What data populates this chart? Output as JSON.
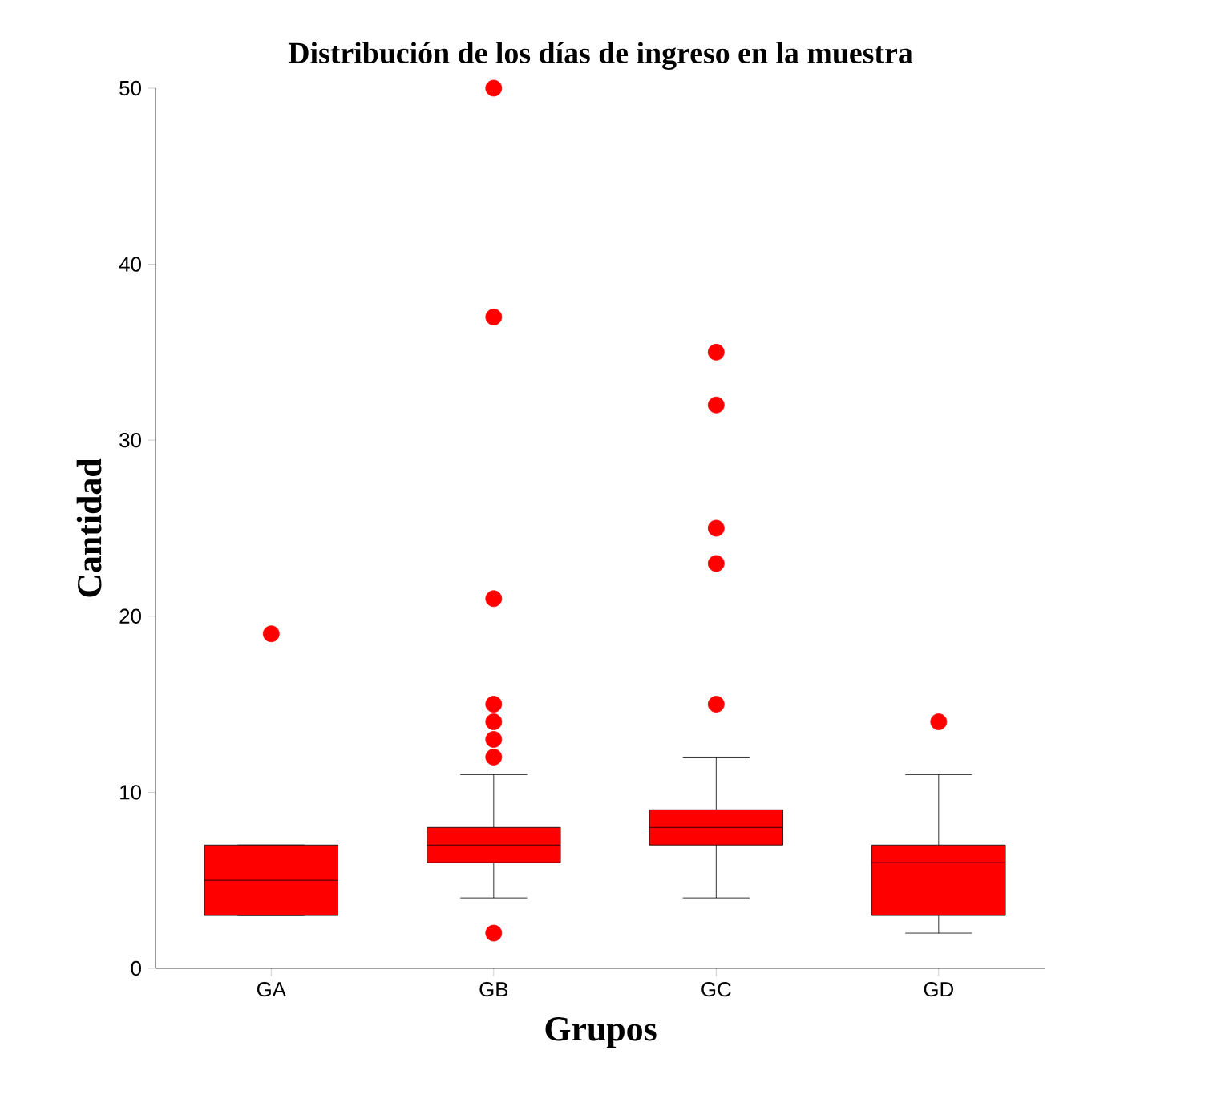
{
  "chart_data": {
    "type": "box",
    "title": "Distribución de los días de ingreso en la muestra",
    "xlabel": "Grupos",
    "ylabel": "Cantidad",
    "categories": [
      "GA",
      "GB",
      "GC",
      "GD"
    ],
    "color": "#ff0000",
    "boxes": [
      {
        "low": 3,
        "q1": 3,
        "median": 5,
        "q3": 7,
        "high": 7,
        "outliers": [
          19
        ]
      },
      {
        "low": 4,
        "q1": 6,
        "median": 7,
        "q3": 8,
        "high": 11,
        "outliers": [
          2,
          12,
          13,
          14,
          15,
          21,
          37,
          50
        ]
      },
      {
        "low": 4,
        "q1": 7,
        "median": 8,
        "q3": 9,
        "high": 12,
        "outliers": [
          15,
          23,
          25,
          32,
          35
        ]
      },
      {
        "low": 2,
        "q1": 3,
        "median": 6,
        "q3": 7,
        "high": 11,
        "outliers": [
          14
        ]
      }
    ],
    "ylim": [
      0,
      50
    ],
    "yticks": [
      0,
      10,
      20,
      30,
      40,
      50
    ],
    "grid": false,
    "marker": "circle"
  }
}
